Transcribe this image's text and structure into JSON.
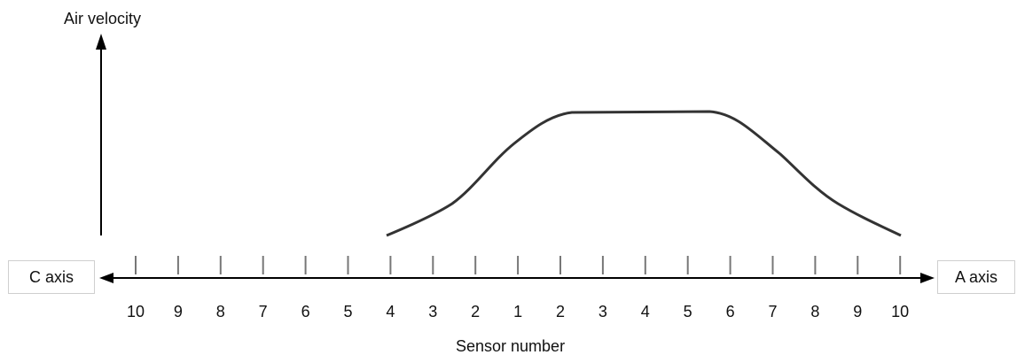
{
  "y_axis_label": "Air velocity",
  "x_axis_label": "Sensor number",
  "left_axis_label": "C axis",
  "right_axis_label": "A axis",
  "tick_labels": [
    "10",
    "9",
    "8",
    "7",
    "6",
    "5",
    "4",
    "3",
    "2",
    "1",
    "2",
    "3",
    "4",
    "5",
    "6",
    "7",
    "8",
    "9",
    "10"
  ],
  "colors": {
    "line": "#000000",
    "curve": "#333333",
    "ticks": "#777777"
  }
}
